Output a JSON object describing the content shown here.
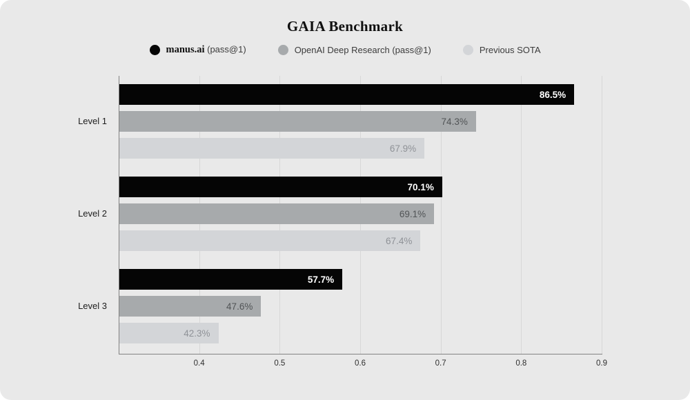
{
  "page": {
    "background": "#ffffff",
    "card_background": "#e9e9e9",
    "gridline_color": "#d7d7d7",
    "axis_color": "#828282"
  },
  "chart_data": {
    "type": "bar",
    "orientation": "horizontal",
    "title": "GAIA Benchmark",
    "categories": [
      "Level 1",
      "Level 2",
      "Level 3"
    ],
    "series": [
      {
        "name": "manus.ai (pass@1)",
        "legend_brand": "manus.ai",
        "legend_rest": "(pass@1)",
        "color": "#050505",
        "label_color": "#ffffff",
        "label_weight": 700,
        "values": [
          86.5,
          70.1,
          57.7
        ],
        "labels": [
          "86.5%",
          "70.1%",
          "57.7%"
        ]
      },
      {
        "name": "OpenAI Deep Research (pass@1)",
        "legend_brand": "",
        "legend_rest": "OpenAI Deep Research (pass@1)",
        "color": "#a7aaac",
        "label_color": "#515456",
        "label_weight": 400,
        "values": [
          74.3,
          69.1,
          47.6
        ],
        "labels": [
          "74.3%",
          "69.1%",
          "47.6%"
        ]
      },
      {
        "name": "Previous SOTA",
        "legend_brand": "",
        "legend_rest": "Previous SOTA",
        "color": "#d3d5d8",
        "label_color": "#8f9297",
        "label_weight": 400,
        "values": [
          67.9,
          67.4,
          42.3
        ],
        "labels": [
          "67.9%",
          "67.4%",
          "42.3%"
        ]
      }
    ],
    "xlim": [
      0.3,
      0.9
    ],
    "xticks": [
      0.4,
      0.5,
      0.6,
      0.7,
      0.8,
      0.9
    ],
    "xtick_labels": [
      "0.4",
      "0.5",
      "0.6",
      "0.7",
      "0.8",
      "0.9"
    ],
    "grid": "vertical",
    "legend_position": "top",
    "values_unit": "percent"
  }
}
